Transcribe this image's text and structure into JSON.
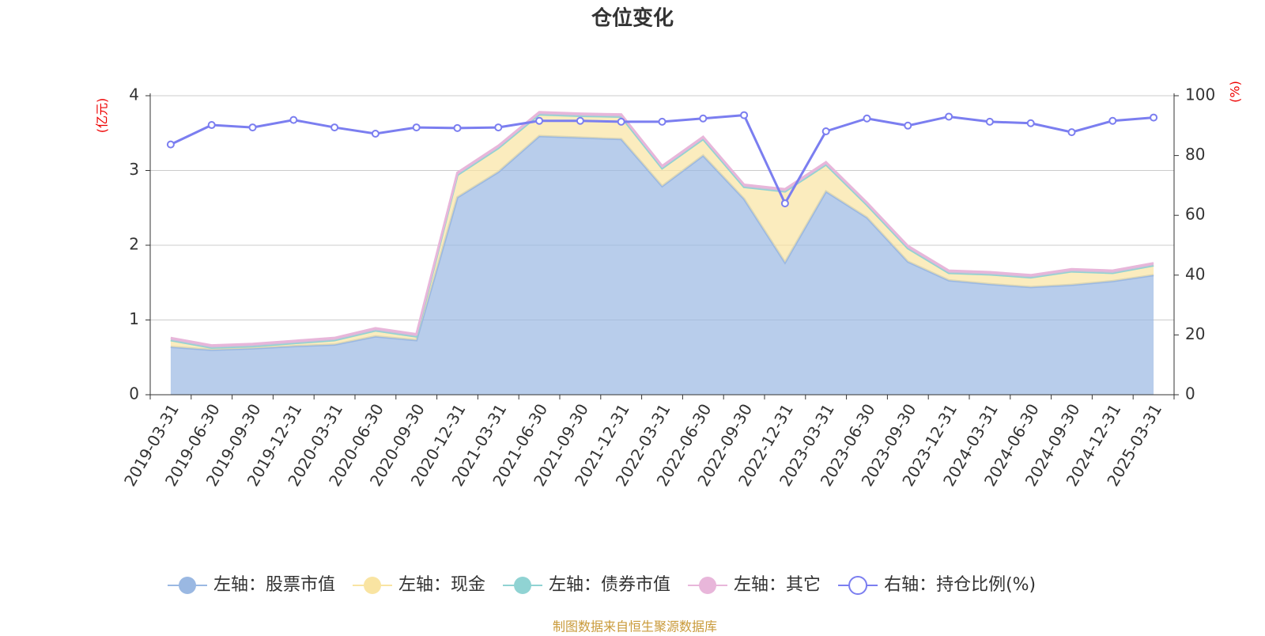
{
  "chart_data": {
    "type": "stacked-area-line",
    "title": "仓位变化",
    "y_label": "(亿元)",
    "y2_label": "(%)",
    "source": "制图数据来自恒生聚源数据库",
    "categories": [
      "2019-03-31",
      "2019-06-30",
      "2019-09-30",
      "2019-12-31",
      "2020-03-31",
      "2020-06-30",
      "2020-09-30",
      "2020-12-31",
      "2021-03-31",
      "2021-06-30",
      "2021-09-30",
      "2021-12-31",
      "2022-03-31",
      "2022-06-30",
      "2022-09-30",
      "2022-12-31",
      "2023-03-31",
      "2023-06-30",
      "2023-09-30",
      "2023-12-31",
      "2024-03-31",
      "2024-06-30",
      "2024-09-30",
      "2024-12-31",
      "2025-03-31"
    ],
    "series": [
      {
        "name": "左轴：股票市值",
        "color": "#9ab8e2",
        "stack": true,
        "values": [
          0.64,
          0.6,
          0.62,
          0.65,
          0.67,
          0.78,
          0.73,
          2.64,
          2.98,
          3.46,
          3.44,
          3.42,
          2.79,
          3.2,
          2.62,
          1.77,
          2.72,
          2.37,
          1.78,
          1.53,
          1.48,
          1.44,
          1.47,
          1.52,
          1.6
        ]
      },
      {
        "name": "左轴：现金",
        "color": "#f9e4a2",
        "stack": true,
        "values": [
          0.09,
          0.03,
          0.03,
          0.04,
          0.06,
          0.08,
          0.05,
          0.3,
          0.32,
          0.29,
          0.29,
          0.3,
          0.24,
          0.22,
          0.16,
          0.95,
          0.36,
          0.17,
          0.18,
          0.1,
          0.13,
          0.13,
          0.18,
          0.11,
          0.13
        ]
      },
      {
        "name": "左轴：债券市值",
        "color": "#90d3d3",
        "stack": true,
        "values": [
          0,
          0,
          0,
          0,
          0,
          0,
          0,
          0,
          0,
          0,
          0,
          0,
          0,
          0,
          0,
          0,
          0,
          0,
          0,
          0,
          0,
          0,
          0,
          0,
          0
        ]
      },
      {
        "name": "左轴：其它",
        "color": "#e8b6da",
        "stack": true,
        "values": [
          0.03,
          0.03,
          0.03,
          0.03,
          0.03,
          0.03,
          0.03,
          0.03,
          0.03,
          0.03,
          0.03,
          0.03,
          0.03,
          0.03,
          0.03,
          0.03,
          0.03,
          0.03,
          0.03,
          0.03,
          0.03,
          0.03,
          0.03,
          0.03,
          0.03
        ]
      },
      {
        "name": "右轴：持仓比例(%)",
        "color": "#7b7ef0",
        "axis": "y2",
        "values": [
          83.7,
          90.2,
          89.4,
          91.9,
          89.4,
          87.3,
          89.4,
          89.2,
          89.4,
          91.6,
          91.6,
          91.3,
          91.3,
          92.4,
          93.5,
          64.0,
          88.1,
          92.4,
          90.0,
          93.0,
          91.3,
          90.8,
          87.8,
          91.6,
          92.7
        ]
      }
    ],
    "ylim": [
      0,
      4
    ],
    "yticks": [
      0,
      1,
      2,
      3,
      4
    ],
    "y2lim": [
      0,
      100
    ],
    "y2ticks": [
      0,
      20,
      40,
      60,
      80,
      100
    ],
    "grid": true
  }
}
